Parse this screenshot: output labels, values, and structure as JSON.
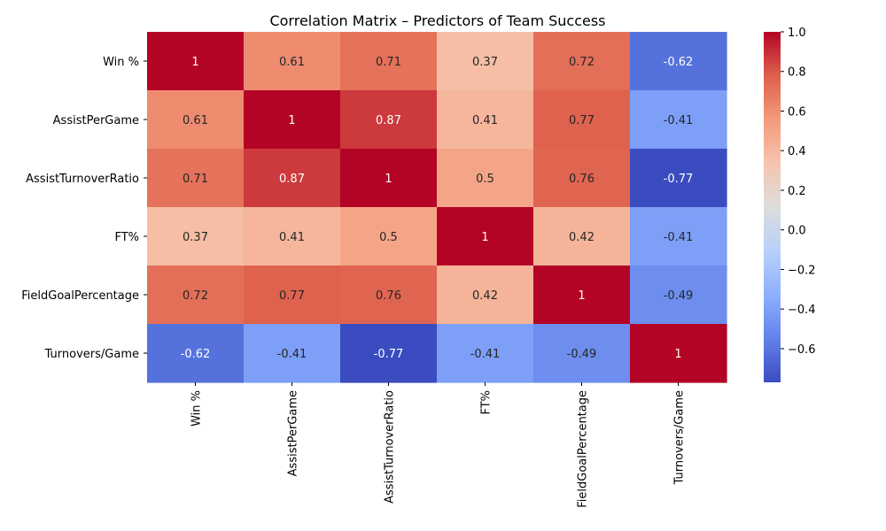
{
  "chart_data": {
    "type": "heatmap",
    "title": "Correlation Matrix – Predictors of Team Success",
    "xlabel": "",
    "ylabel": "",
    "rows": [
      "Win %",
      "AssistPerGame",
      "AssistTurnoverRatio",
      "FT%",
      "FieldGoalPercentage",
      "Turnovers/Game"
    ],
    "columns": [
      "Win %",
      "AssistPerGame",
      "AssistTurnoverRatio",
      "FT%",
      "FieldGoalPercentage",
      "Turnovers/Game"
    ],
    "values": [
      [
        1,
        0.61,
        0.71,
        0.37,
        0.72,
        -0.62
      ],
      [
        0.61,
        1,
        0.87,
        0.41,
        0.77,
        -0.41
      ],
      [
        0.71,
        0.87,
        1,
        0.5,
        0.76,
        -0.77
      ],
      [
        0.37,
        0.41,
        0.5,
        1,
        0.42,
        -0.41
      ],
      [
        0.72,
        0.77,
        0.76,
        0.42,
        1,
        -0.49
      ],
      [
        -0.62,
        -0.41,
        -0.77,
        -0.41,
        -0.49,
        1
      ]
    ],
    "value_labels": [
      [
        "1",
        "0.61",
        "0.71",
        "0.37",
        "0.72",
        "-0.62"
      ],
      [
        "0.61",
        "1",
        "0.87",
        "0.41",
        "0.77",
        "-0.41"
      ],
      [
        "0.71",
        "0.87",
        "1",
        "0.5",
        "0.76",
        "-0.77"
      ],
      [
        "0.37",
        "0.41",
        "0.5",
        "1",
        "0.42",
        "-0.41"
      ],
      [
        "0.72",
        "0.77",
        "0.76",
        "0.42",
        "1",
        "-0.49"
      ],
      [
        "-0.62",
        "-0.41",
        "-0.77",
        "-0.41",
        "-0.49",
        "1"
      ]
    ],
    "colormap": "coolwarm",
    "vmin": -0.77,
    "vmax": 1.0,
    "colorbar_ticks": [
      1.0,
      0.8,
      0.6,
      0.4,
      0.2,
      0.0,
      -0.2,
      -0.4,
      -0.6
    ],
    "colorbar_tick_labels": [
      "1.0",
      "0.8",
      "0.6",
      "0.4",
      "0.2",
      "0.0",
      "−0.2",
      "−0.4",
      "−0.6"
    ],
    "grid": false
  }
}
